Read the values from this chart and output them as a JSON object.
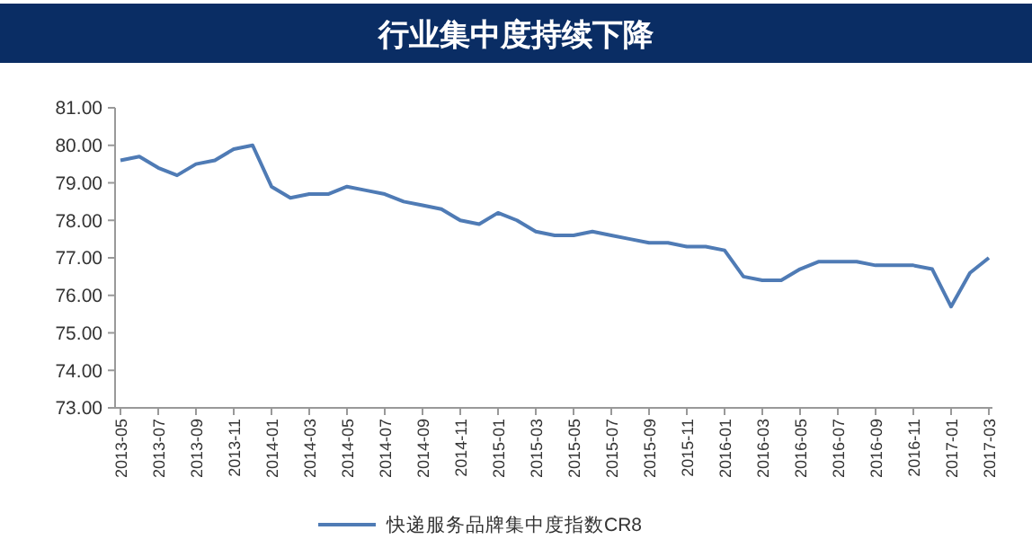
{
  "chart_data": {
    "type": "line",
    "title": "行业集中度持续下降",
    "categories": [
      "2013-05",
      null,
      "2013-07",
      null,
      "2013-09",
      null,
      "2013-11",
      null,
      "2014-01",
      null,
      "2014-03",
      null,
      "2014-05",
      null,
      "2014-07",
      null,
      "2014-09",
      null,
      "2014-11",
      null,
      "2015-01",
      null,
      "2015-03",
      null,
      "2015-05",
      null,
      "2015-07",
      null,
      "2015-09",
      null,
      "2015-11",
      null,
      "2016-01",
      null,
      "2016-03",
      null,
      "2016-05",
      null,
      "2016-07",
      null,
      "2016-09",
      null,
      "2016-11",
      null,
      "2017-01",
      null,
      "2017-03"
    ],
    "series": [
      {
        "name": "快递服务品牌集中度指数CR8",
        "color": "#4f7bb5",
        "values": [
          79.6,
          79.7,
          79.4,
          79.2,
          79.5,
          79.6,
          79.9,
          80.0,
          78.9,
          78.6,
          78.7,
          78.7,
          78.9,
          78.8,
          78.7,
          78.5,
          78.4,
          78.3,
          78.0,
          77.9,
          78.2,
          78.0,
          77.7,
          77.6,
          77.6,
          77.7,
          77.6,
          77.5,
          77.4,
          77.4,
          77.3,
          77.3,
          77.2,
          76.5,
          76.4,
          76.4,
          76.7,
          76.9,
          76.9,
          76.9,
          76.8,
          76.8,
          76.8,
          76.7,
          75.7,
          76.6,
          77.0
        ]
      }
    ],
    "ylim": [
      73,
      81
    ],
    "yticks": [
      {
        "value": 73,
        "label": "73.00"
      },
      {
        "value": 74,
        "label": "74.00"
      },
      {
        "value": 75,
        "label": "75.00"
      },
      {
        "value": 76,
        "label": "76.00"
      },
      {
        "value": 77,
        "label": "77.00"
      },
      {
        "value": 78,
        "label": "78.00"
      },
      {
        "value": 79,
        "label": "79.00"
      },
      {
        "value": 80,
        "label": "80.00"
      },
      {
        "value": 81,
        "label": "81.00"
      }
    ],
    "grid": false,
    "legend": "bottom",
    "marker": "none",
    "line_style": "solid"
  }
}
